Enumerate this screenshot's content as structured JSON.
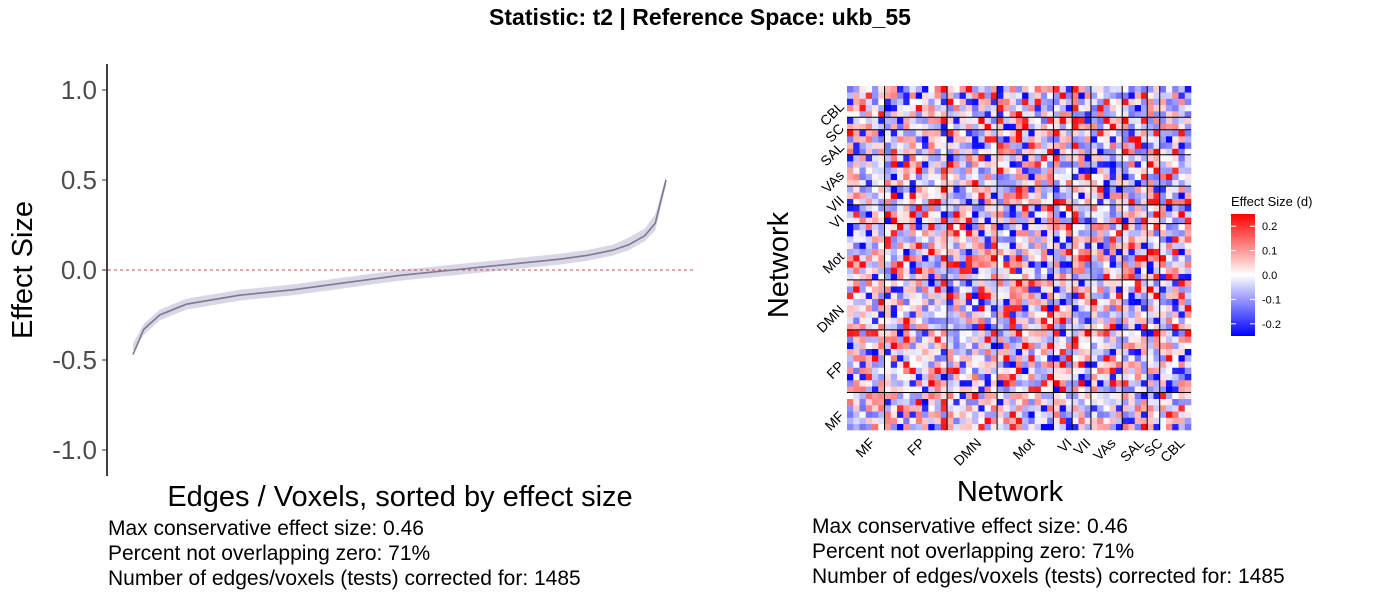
{
  "title": "Statistic: t2   |  Reference Space: ukb_55",
  "chart_data": [
    {
      "type": "line",
      "title": "",
      "xlabel": "Edges / Voxels, sorted by effect size",
      "ylabel": "Effect Size",
      "ylim": [
        -1.3,
        1.3
      ],
      "yticks": [
        1.0,
        0.5,
        0.0,
        -0.5,
        -1.0
      ],
      "ytick_labels": [
        "1.0",
        "0.5",
        "0.0",
        "-0.5",
        "-1.0"
      ],
      "n_points": 1485,
      "reference_line": 0.0,
      "series": [
        {
          "name": "effect size",
          "x": [
            0,
            0.02,
            0.05,
            0.1,
            0.2,
            0.3,
            0.4,
            0.5,
            0.6,
            0.7,
            0.8,
            0.85,
            0.9,
            0.93,
            0.96,
            0.98,
            1.0
          ],
          "values": [
            -0.47,
            -0.33,
            -0.25,
            -0.19,
            -0.14,
            -0.11,
            -0.07,
            -0.03,
            0.0,
            0.03,
            0.06,
            0.08,
            0.11,
            0.14,
            0.19,
            0.26,
            0.5
          ],
          "ci_lower": [
            -0.45,
            -0.36,
            -0.28,
            -0.22,
            -0.17,
            -0.14,
            -0.1,
            -0.06,
            -0.03,
            0.0,
            0.03,
            0.05,
            0.08,
            0.11,
            0.16,
            0.22,
            0.47
          ],
          "ci_upper": [
            -0.41,
            -0.3,
            -0.22,
            -0.16,
            -0.11,
            -0.08,
            -0.04,
            0.0,
            0.03,
            0.06,
            0.09,
            0.11,
            0.14,
            0.18,
            0.23,
            0.31,
            0.52
          ]
        }
      ],
      "stats": {
        "max_effect": "Max conservative effect size: 0.46",
        "percent_nonzero": "Percent not overlapping zero: 71%",
        "n_tests": "Number of edges/voxels (tests) corrected for: 1485"
      }
    },
    {
      "type": "heatmap",
      "title": "",
      "xlabel": "Network",
      "ylabel": "Network",
      "n_nodes": 55,
      "networks": [
        "MF",
        "FP",
        "DMN",
        "Mot",
        "VI",
        "VII",
        "VAs",
        "SAL",
        "SC",
        "CBL"
      ],
      "network_sizes": [
        6,
        10,
        8,
        9,
        3,
        3,
        5,
        4,
        2,
        5
      ],
      "value_range": [
        -0.25,
        0.25
      ],
      "seed": 42,
      "legend": {
        "title": "Effect Size (d)",
        "ticks": [
          0.2,
          0.1,
          0.0,
          -0.1,
          -0.2
        ],
        "tick_labels": [
          "0.2",
          "0.1",
          "0.0",
          "-0.1",
          "-0.2"
        ]
      },
      "colors": {
        "low": "#0000ff",
        "mid": "#ffffff",
        "high": "#ff0000"
      },
      "stats": {
        "max_effect": "Max conservative effect size: 0.46",
        "percent_nonzero": "Percent not overlapping zero: 71%",
        "n_tests": "Number of edges/voxels (tests) corrected for: 1485"
      }
    }
  ],
  "colors": {
    "line": "#7f7890",
    "ribbon": "#d9d6e6",
    "zero_line": "#c0504d",
    "tick_text": "#4d4d4d"
  }
}
